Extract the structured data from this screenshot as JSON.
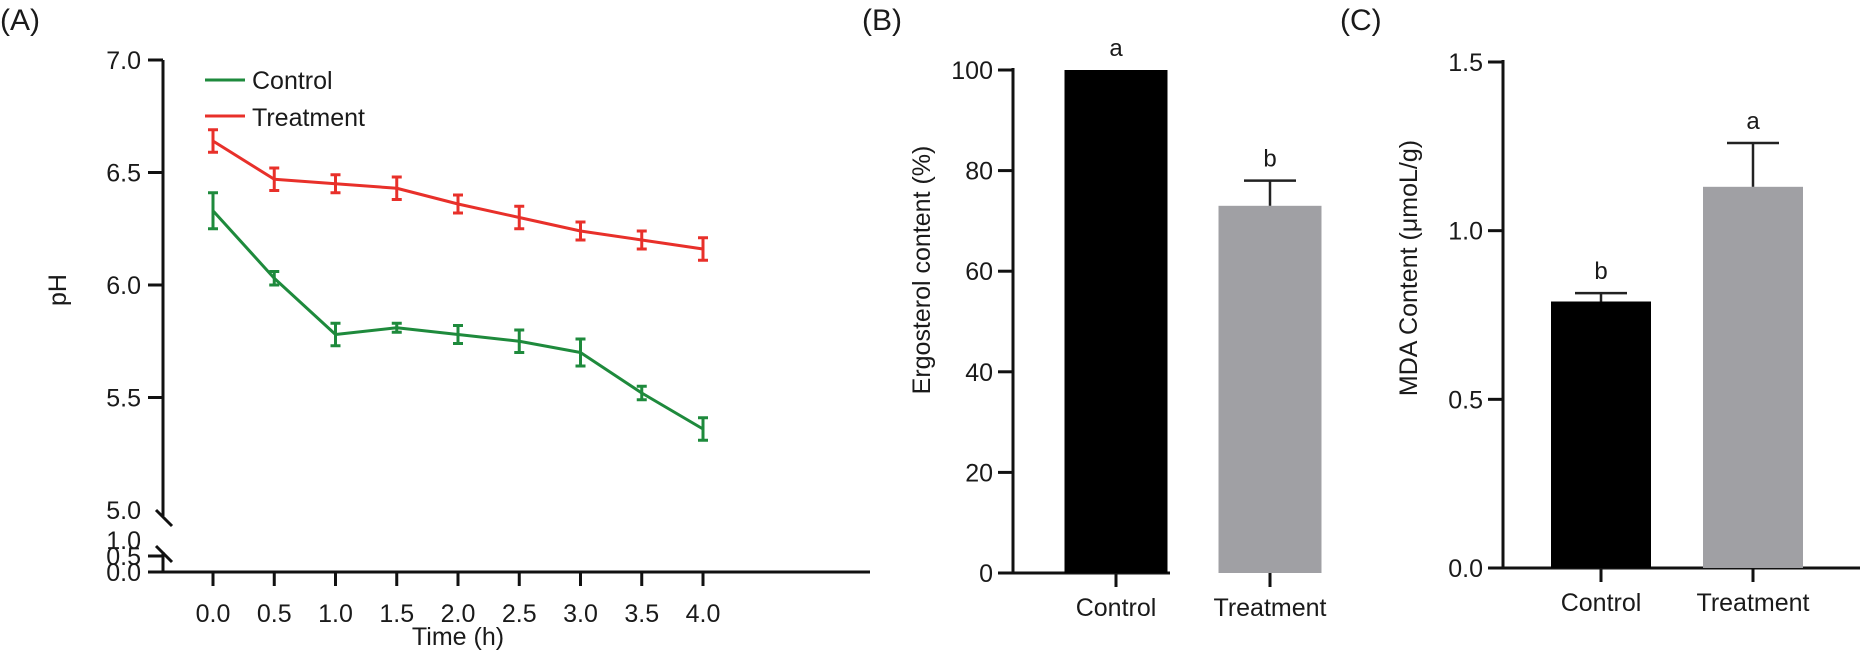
{
  "chart_data": [
    {
      "panel": "(A)",
      "type": "line",
      "title": "",
      "xlabel": "Time (h)",
      "ylabel": "pH",
      "x": [
        0.0,
        0.5,
        1.0,
        1.5,
        2.0,
        2.5,
        3.0,
        3.5,
        4.0
      ],
      "x_tick_labels": [
        "0.0",
        "0.5",
        "1.0",
        "1.5",
        "2.0",
        "2.5",
        "3.0",
        "3.5",
        "4.0"
      ],
      "y_upper_range": [
        5.0,
        7.0
      ],
      "y_lower_range": [
        0.0,
        1.0
      ],
      "y_axis_break": true,
      "y_tick_labels_upper": [
        "5.0",
        "5.5",
        "6.0",
        "6.5",
        "7.0"
      ],
      "y_tick_labels_lower": [
        "0.0",
        "0.5",
        "1.0"
      ],
      "legend_position": "top-left",
      "grid": false,
      "series": [
        {
          "name": "Control",
          "color": "#1e8a3c",
          "values": [
            6.33,
            6.03,
            5.78,
            5.81,
            5.78,
            5.75,
            5.7,
            5.52,
            5.36
          ],
          "errors": [
            0.08,
            0.03,
            0.05,
            0.02,
            0.04,
            0.05,
            0.06,
            0.03,
            0.05
          ]
        },
        {
          "name": "Treatment",
          "color": "#e8302a",
          "values": [
            6.64,
            6.47,
            6.45,
            6.43,
            6.36,
            6.3,
            6.24,
            6.2,
            6.16
          ],
          "errors": [
            0.05,
            0.05,
            0.04,
            0.05,
            0.04,
            0.05,
            0.04,
            0.04,
            0.05
          ]
        }
      ]
    },
    {
      "panel": "(B)",
      "type": "bar",
      "title": "",
      "xlabel": "",
      "ylabel": "Ergosterol content (%)",
      "categories": [
        "Control",
        "Treatment"
      ],
      "values": [
        100,
        73
      ],
      "errors": [
        0,
        5
      ],
      "significance": [
        "a",
        "b"
      ],
      "bar_colors": [
        "#000000",
        "#a0a0a4"
      ],
      "ylim": [
        0,
        100
      ],
      "y_tick_labels": [
        "0",
        "20",
        "40",
        "60",
        "80",
        "100"
      ],
      "grid": false
    },
    {
      "panel": "(C)",
      "type": "bar",
      "title": "",
      "xlabel": "",
      "ylabel": "MDA Content (μmoL/g)",
      "categories": [
        "Control",
        "Treatment"
      ],
      "values": [
        0.79,
        1.13
      ],
      "errors": [
        0.025,
        0.13
      ],
      "significance": [
        "b",
        "a"
      ],
      "bar_colors": [
        "#000000",
        "#a0a0a4"
      ],
      "ylim": [
        0,
        1.5
      ],
      "y_tick_labels": [
        "0.0",
        "0.5",
        "1.0",
        "1.5"
      ],
      "grid": false
    }
  ]
}
